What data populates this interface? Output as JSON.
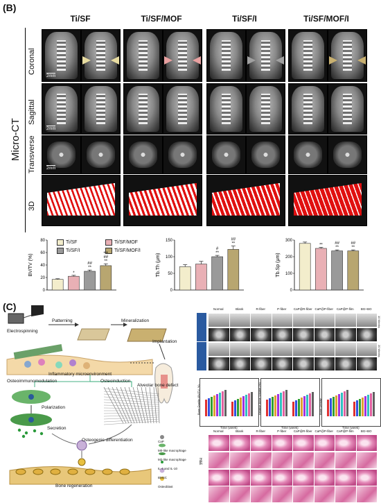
{
  "panel_b": {
    "letter": "(B)",
    "side_label": "Micro-CT",
    "columns": [
      "Ti/SF",
      "Ti/SF/MOF",
      "Ti/SF/I",
      "Ti/SF/MOF/I"
    ],
    "rows": [
      "Coronal",
      "Sagittal",
      "Transverse",
      "3D"
    ],
    "scale_label": "2mm",
    "arrow_colors": [
      "#e8dca0",
      "#e8a0a0",
      "#a0a0a0",
      "#c8b070"
    ]
  },
  "charts": {
    "legend": [
      "Ti/SF",
      "Ti/SF/MOF",
      "Ti/SF/I",
      "Ti/SF/MOF/I"
    ],
    "colors": [
      "#f3edcc",
      "#e9b0b5",
      "#9a9a9a",
      "#b8a670"
    ],
    "chart_data": [
      {
        "type": "bar",
        "categories": [
          "Ti/SF",
          "Ti/SF/MOF",
          "Ti/SF/I",
          "Ti/SF/MOF/I"
        ],
        "values": [
          17,
          22,
          30,
          39
        ],
        "errors": [
          1,
          1.5,
          2,
          3
        ],
        "ylabel": "BV/TV (%)",
        "ylim": [
          0,
          80
        ],
        "yticks": [
          "0",
          "20",
          "40",
          "60",
          "80"
        ],
        "annotations": [
          "",
          "*",
          "##\n**",
          "++\n##\n**"
        ]
      },
      {
        "type": "bar",
        "categories": [
          "Ti/SF",
          "Ti/SF/MOF",
          "Ti/SF/I",
          "Ti/SF/MOF/I"
        ],
        "values": [
          70,
          78,
          100,
          122
        ],
        "errors": [
          6,
          8,
          4,
          10
        ],
        "ylabel": "Tb.Th (μm)",
        "ylim": [
          0,
          150
        ],
        "yticks": [
          "0",
          "50",
          "100",
          "150"
        ],
        "annotations": [
          "",
          "",
          "#\n**",
          "+\n##\n**"
        ]
      },
      {
        "type": "bar",
        "categories": [
          "Ti/SF",
          "Ti/SF/MOF",
          "Ti/SF/I",
          "Ti/SF/MOF/I"
        ],
        "values": [
          280,
          250,
          235,
          235
        ],
        "errors": [
          8,
          6,
          6,
          6
        ],
        "ylabel": "Tb.Sp (μm)",
        "ylim": [
          0,
          300
        ],
        "yticks": [
          "0",
          "100",
          "200",
          "300"
        ],
        "annotations": [
          "",
          "**",
          "##\n**",
          "##\n**"
        ]
      }
    ]
  },
  "panel_c": {
    "letter": "(C)",
    "labels": {
      "electrospinning": "Electrospinning",
      "patterning": "Patterning",
      "mineralization": "Mineralization",
      "implantation": "Implantation",
      "inflammatory": "Inflammatory microenvironment",
      "alveolar": "Alveolar bone defect",
      "osteoimmuno": "Osteoimmunomodulation",
      "osteoinduction": "Osteoinduction",
      "polarization": "Polarization",
      "secretion": "Secretion",
      "osteogenic": "Osteogenic differentiation",
      "regeneration": "Bone regeneration"
    },
    "legend": [
      "CaP",
      "M0-like macrophage",
      "M2-like macrophage",
      "IL-4 and IL-10",
      "BMSC",
      "Osteoblast"
    ],
    "image_columns": [
      "Normal",
      "Blank",
      "R-fiber",
      "P-fiber",
      "CaP@R-fiber",
      "CaP@P-fiber",
      "CaP@P-film",
      "BG+BO"
    ],
    "week_labels": [
      "10 Weeks",
      "20 Weeks"
    ],
    "mini_charts": [
      {
        "ylabel": "Bone Quality (BV/TV, %)",
        "xlabel": "Time (week)"
      },
      {
        "ylabel": "Relative Bone Volume (%)",
        "xlabel": "Time (week)"
      },
      {
        "ylabel": "Bone Density",
        "xlabel": "Time (week)"
      }
    ],
    "he_label": "H&E"
  }
}
